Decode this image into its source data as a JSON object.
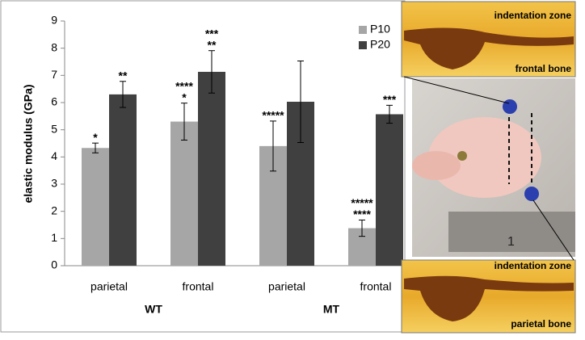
{
  "chart_data": {
    "type": "bar",
    "y_label": "elastic modulus (GPa)",
    "categories": [
      "parietal",
      "frontal",
      "parietal",
      "frontal"
    ],
    "groups": [
      {
        "name": "WT",
        "size": 2
      },
      {
        "name": "MT",
        "size": 2
      }
    ],
    "series": [
      {
        "name": "P10",
        "color": "#a6a6a6",
        "values": [
          4.33,
          5.3,
          4.4,
          1.38
        ],
        "errors": [
          0.18,
          0.68,
          0.92,
          0.3
        ],
        "annotations": [
          [
            "*"
          ],
          [
            "****",
            "*"
          ],
          [
            "*****"
          ],
          [
            "*****",
            "****"
          ]
        ]
      },
      {
        "name": "P20",
        "color": "#404040",
        "values": [
          6.3,
          7.13,
          6.03,
          5.57
        ],
        "errors": [
          0.48,
          0.78,
          1.5,
          0.33
        ],
        "annotations": [
          [
            "**"
          ],
          [
            "***",
            "**"
          ],
          [],
          [
            "***"
          ]
        ]
      }
    ],
    "ylim": [
      0,
      9
    ],
    "yticks": [
      0,
      1,
      2,
      3,
      4,
      5,
      6,
      7,
      8,
      9
    ],
    "legend": "top-right"
  },
  "insets": {
    "top_labels": [
      "indentation zone",
      "frontal bone"
    ],
    "bottom_labels": [
      "indentation zone",
      "parietal bone"
    ],
    "ruler_label": "1"
  }
}
